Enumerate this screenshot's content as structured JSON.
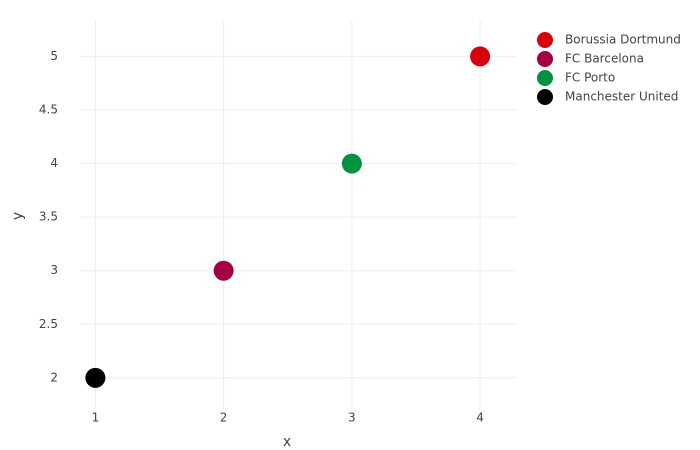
{
  "chart_data": {
    "type": "scatter",
    "x_label": "x",
    "y_label": "y",
    "series": [
      {
        "name": "Borussia Dortmund",
        "color": "#d7000f",
        "x": [
          4
        ],
        "values": [
          5
        ]
      },
      {
        "name": "FC Barcelona",
        "color": "#a50044",
        "x": [
          2
        ],
        "values": [
          3
        ]
      },
      {
        "name": "FC Porto",
        "color": "#00923f",
        "x": [
          3
        ],
        "values": [
          4
        ]
      },
      {
        "name": "Manchester United",
        "color": "#000000",
        "x": [
          1
        ],
        "values": [
          2
        ]
      }
    ],
    "xlim": [
      0.88,
      4.28
    ],
    "xticks": [
      1,
      2,
      3,
      4
    ],
    "ylim": [
      1.7,
      5.34
    ],
    "yticks": [
      2,
      2.5,
      3,
      3.5,
      4,
      4.5,
      5
    ],
    "grid": true,
    "legend": "right"
  }
}
